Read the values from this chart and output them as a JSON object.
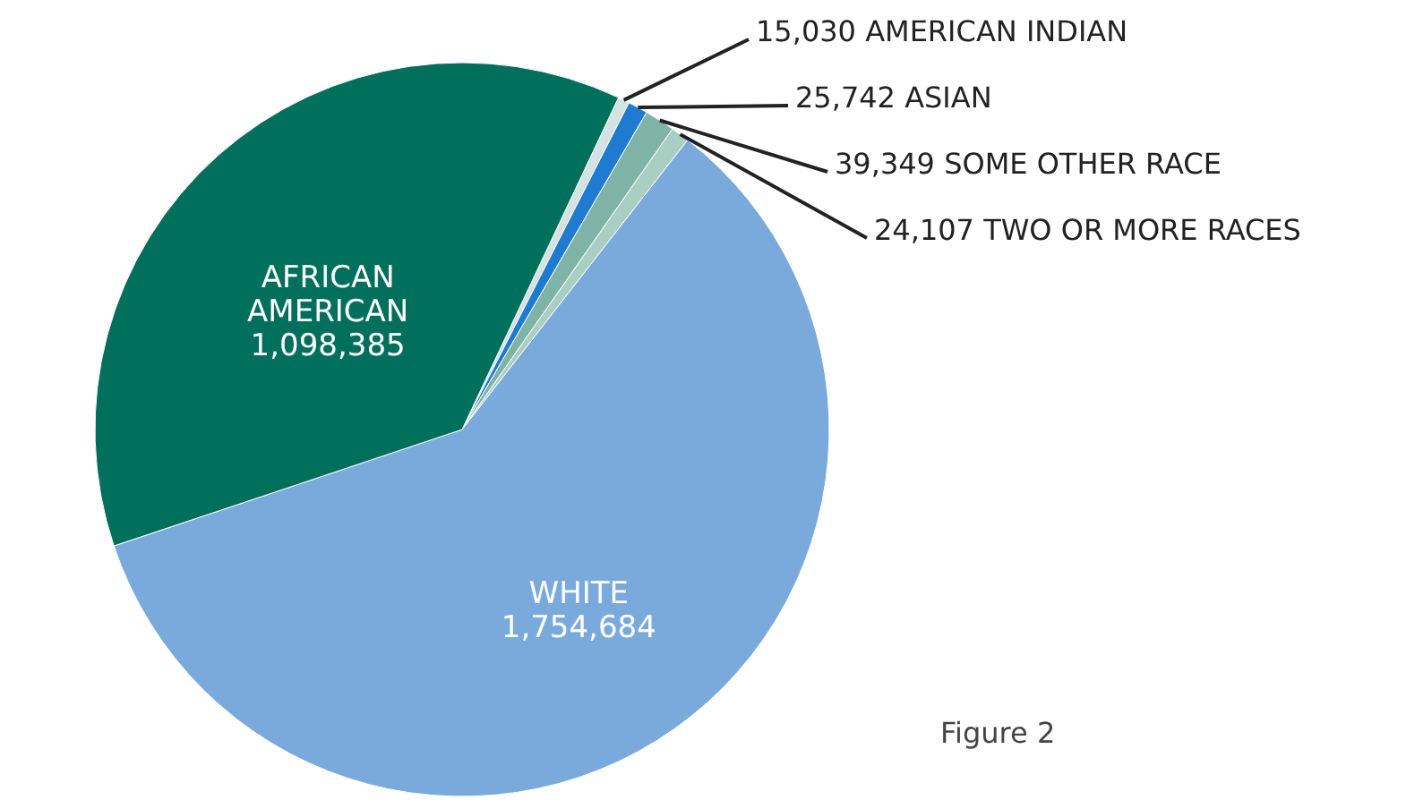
{
  "chart_data": {
    "type": "pie",
    "categories": [
      "AMERICAN INDIAN",
      "ASIAN",
      "SOME OTHER RACE",
      "TWO OR MORE RACES",
      "WHITE",
      "AFRICAN AMERICAN"
    ],
    "values": [
      15030,
      25742,
      39349,
      24107,
      1754684,
      1098385
    ],
    "colors": [
      "#d3e3e3",
      "#1f7bd0",
      "#7fb3a5",
      "#a9cfc3",
      "#7aaadb",
      "#00705c"
    ],
    "value_labels": [
      "15,030",
      "25,742",
      "39,349",
      "24,107",
      "1,754,684",
      "1,098,385"
    ],
    "annotations": [
      "Figure 2"
    ]
  }
}
